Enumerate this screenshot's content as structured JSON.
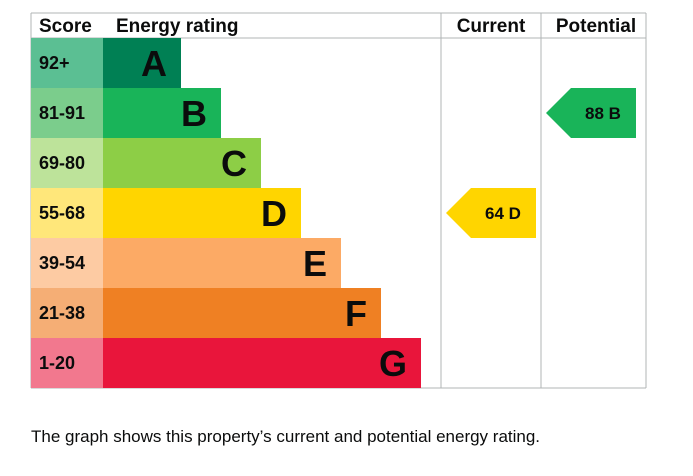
{
  "chart_data": {
    "type": "bar",
    "headers": {
      "score": "Score",
      "rating": "Energy rating",
      "current": "Current",
      "potential": "Potential"
    },
    "bands": [
      {
        "letter": "A",
        "score": "92+",
        "color": "#008054",
        "score_bg": "#5bbf93",
        "letter_color": "#0b0c0c"
      },
      {
        "letter": "B",
        "score": "81-91",
        "color": "#19b459",
        "score_bg": "#7bcd8c",
        "letter_color": "#0b0c0c"
      },
      {
        "letter": "C",
        "score": "69-80",
        "color": "#8dce46",
        "score_bg": "#bde39a",
        "letter_color": "#0b0c0c"
      },
      {
        "letter": "D",
        "score": "55-68",
        "color": "#ffd500",
        "score_bg": "#ffe77a",
        "letter_color": "#0b0c0c"
      },
      {
        "letter": "E",
        "score": "39-54",
        "color": "#fcaa65",
        "score_bg": "#fdcba3",
        "letter_color": "#0b0c0c"
      },
      {
        "letter": "F",
        "score": "21-38",
        "color": "#ef8023",
        "score_bg": "#f5ae75",
        "letter_color": "#0b0c0c"
      },
      {
        "letter": "G",
        "score": "1-20",
        "color": "#e9153b",
        "score_bg": "#f2788e",
        "letter_color": "#0b0c0c"
      }
    ],
    "current": {
      "value": 64,
      "band": "D",
      "label": "64  D",
      "color": "#ffd500",
      "text_color": "#0b0c0c"
    },
    "potential": {
      "value": 88,
      "band": "B",
      "label": "88  B",
      "color": "#19b459",
      "text_color": "#0b0c0c"
    }
  },
  "caption": "The graph shows this property’s current and potential energy rating."
}
